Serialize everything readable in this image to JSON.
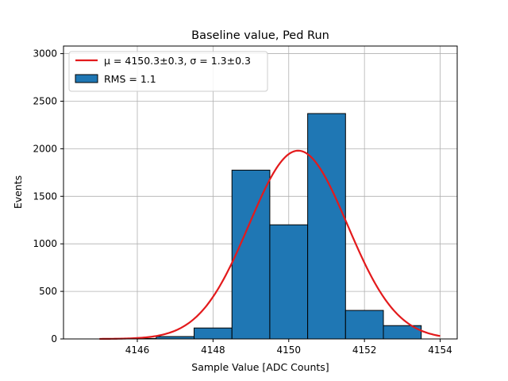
{
  "chart_data": {
    "type": "bar",
    "title": "Baseline value, Ped Run",
    "xlabel": "Sample Value [ADC Counts]",
    "ylabel": "Events",
    "xlim": [
      4144.05,
      4154.45
    ],
    "ylim": [
      0,
      3080
    ],
    "xticks": [
      4146,
      4148,
      4150,
      4152,
      4154
    ],
    "yticks": [
      0,
      500,
      1000,
      1500,
      2000,
      2500,
      3000
    ],
    "grid": true,
    "legend_position": "top-left",
    "histogram": {
      "name": "RMS = 1.1",
      "color": "#1f77b4",
      "edge_color": "#000000",
      "bins": [
        {
          "x0": 4144.5,
          "x1": 4145.5,
          "count": 0
        },
        {
          "x0": 4145.5,
          "x1": 4146.5,
          "count": 5
        },
        {
          "x0": 4146.5,
          "x1": 4147.5,
          "count": 25
        },
        {
          "x0": 4147.5,
          "x1": 4148.5,
          "count": 115
        },
        {
          "x0": 4148.5,
          "x1": 4149.5,
          "count": 1775
        },
        {
          "x0": 4149.5,
          "x1": 4150.5,
          "count": 1200
        },
        {
          "x0": 4150.5,
          "x1": 4151.5,
          "count": 2370
        },
        {
          "x0": 4151.5,
          "x1": 4152.5,
          "count": 300
        },
        {
          "x0": 4152.5,
          "x1": 4153.5,
          "count": 140
        }
      ]
    },
    "fit": {
      "name": "μ = 4150.3±0.3, σ = 1.3±0.3",
      "type": "gaussian",
      "color": "#e31a1c",
      "amplitude": 1980,
      "mu": 4150.25,
      "sigma": 1.3,
      "x_range": [
        4145,
        4154
      ]
    }
  }
}
